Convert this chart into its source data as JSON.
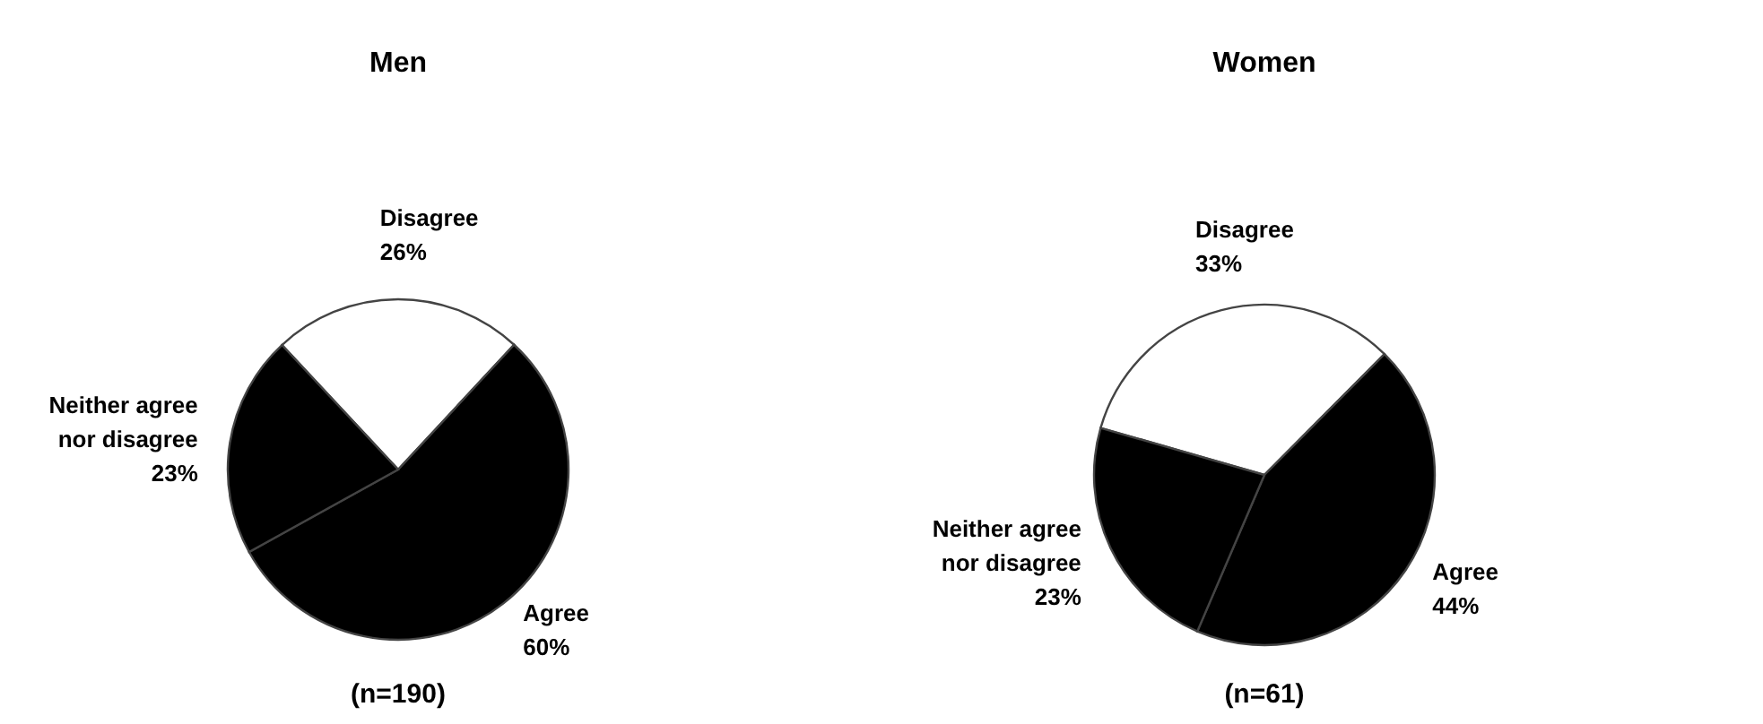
{
  "chart_data": [
    {
      "type": "pie",
      "title": "Men",
      "categories": [
        "Disagree",
        "Agree",
        "Neither agree nor disagree"
      ],
      "values": [
        26,
        60,
        23
      ],
      "colors": [
        "#ffffff",
        "#000000",
        "#000000"
      ],
      "value_labels": [
        "26%",
        "60%",
        "23%"
      ],
      "annotations": [
        "(n=190)"
      ]
    },
    {
      "type": "pie",
      "title": "Women",
      "categories": [
        "Disagree",
        "Agree",
        "Neither agree nor disagree"
      ],
      "values": [
        33,
        44,
        23
      ],
      "colors": [
        "#ffffff",
        "#000000",
        "#000000"
      ],
      "value_labels": [
        "33%",
        "44%",
        "23%"
      ],
      "annotations": [
        "(n=61)"
      ]
    }
  ]
}
